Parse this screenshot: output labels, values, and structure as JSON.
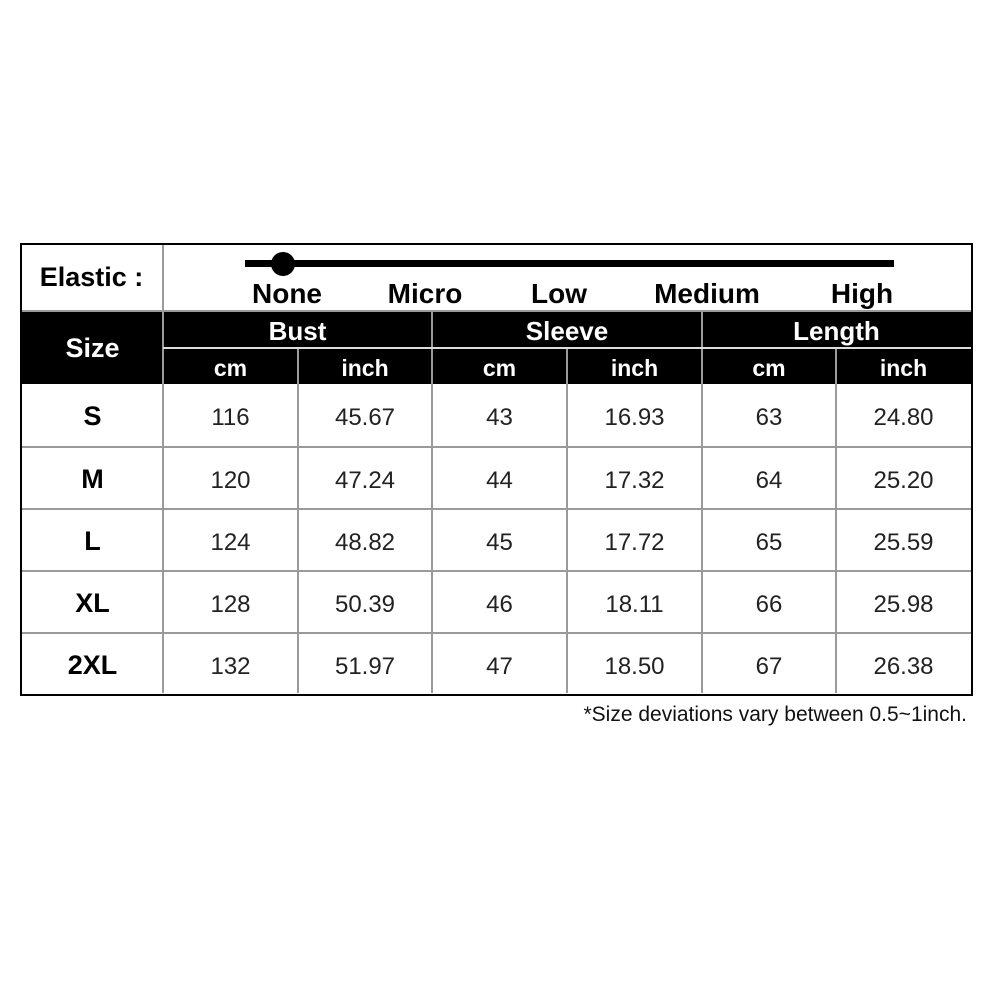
{
  "elastic": {
    "label": "Elastic :",
    "levels": [
      "None",
      "Micro",
      "Low",
      "Medium",
      "High"
    ],
    "selected_index": 0
  },
  "header": {
    "size": "Size",
    "groups": [
      "Bust",
      "Sleeve",
      "Length"
    ],
    "units": [
      "cm",
      "inch",
      "cm",
      "inch",
      "cm",
      "inch"
    ]
  },
  "rows": [
    {
      "size": "S",
      "values": [
        "116",
        "45.67",
        "43",
        "16.93",
        "63",
        "24.80"
      ]
    },
    {
      "size": "M",
      "values": [
        "120",
        "47.24",
        "44",
        "17.32",
        "64",
        "25.20"
      ]
    },
    {
      "size": "L",
      "values": [
        "124",
        "48.82",
        "45",
        "17.72",
        "65",
        "25.59"
      ]
    },
    {
      "size": "XL",
      "values": [
        "128",
        "50.39",
        "46",
        "18.11",
        "66",
        "25.98"
      ]
    },
    {
      "size": "2XL",
      "values": [
        "132",
        "51.97",
        "47",
        "18.50",
        "67",
        "26.38"
      ]
    }
  ],
  "note": "*Size deviations vary between 0.5~1inch."
}
